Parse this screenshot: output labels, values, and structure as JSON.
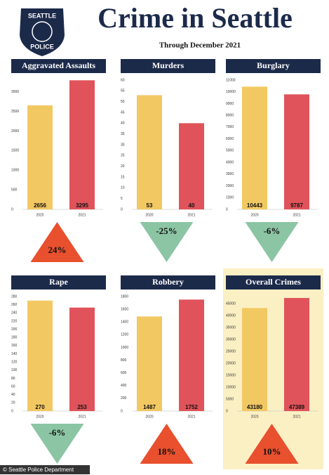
{
  "header": {
    "badge_top": "SEATTLE",
    "badge_bottom": "POLICE",
    "title": "Crime in Seattle",
    "subtitle": "Through December 2021"
  },
  "credit": "© Seattle Police Department",
  "chart_data": [
    {
      "type": "bar",
      "title": "Aggravated Assaults",
      "categories": [
        "2020",
        "2021"
      ],
      "values": [
        2656,
        3295
      ],
      "colors": [
        "#f2c862",
        "#e0535a"
      ],
      "ylim": [
        0,
        3300
      ],
      "yticks": [
        0,
        500,
        1000,
        1500,
        2000,
        2500,
        3000
      ],
      "annotation": "24%",
      "annotation_direction": "up",
      "annotation_color": "#e8502e",
      "highlight": false
    },
    {
      "type": "bar",
      "title": "Murders",
      "categories": [
        "2020",
        "2021"
      ],
      "values": [
        53,
        40
      ],
      "colors": [
        "#f2c862",
        "#e0535a"
      ],
      "ylim": [
        0,
        60
      ],
      "yticks": [
        0,
        5,
        10,
        15,
        20,
        25,
        30,
        35,
        40,
        45,
        50,
        55,
        60
      ],
      "annotation": "-25%",
      "annotation_direction": "down",
      "annotation_color": "#8cc5a4",
      "highlight": false
    },
    {
      "type": "bar",
      "title": "Burglary",
      "categories": [
        "2020",
        "2021"
      ],
      "values": [
        10443,
        9787
      ],
      "colors": [
        "#f2c862",
        "#e0535a"
      ],
      "ylim": [
        0,
        11000
      ],
      "yticks": [
        0,
        1000,
        2000,
        3000,
        4000,
        5000,
        6000,
        7000,
        8000,
        9000,
        10000,
        11000
      ],
      "annotation": "-6%",
      "annotation_direction": "down",
      "annotation_color": "#8cc5a4",
      "highlight": false
    },
    {
      "type": "bar",
      "title": "Rape",
      "categories": [
        "2020",
        "2021"
      ],
      "values": [
        270,
        253
      ],
      "colors": [
        "#f2c862",
        "#e0535a"
      ],
      "ylim": [
        0,
        280
      ],
      "yticks": [
        0,
        20,
        40,
        60,
        80,
        100,
        120,
        140,
        160,
        180,
        200,
        220,
        240,
        260,
        280
      ],
      "annotation": "-6%",
      "annotation_direction": "down",
      "annotation_color": "#8cc5a4",
      "highlight": false
    },
    {
      "type": "bar",
      "title": "Robbery",
      "categories": [
        "2020",
        "2021"
      ],
      "values": [
        1487,
        1752
      ],
      "colors": [
        "#f2c862",
        "#e0535a"
      ],
      "ylim": [
        0,
        1800
      ],
      "yticks": [
        0,
        200,
        400,
        600,
        800,
        1000,
        1200,
        1400,
        1600,
        1800
      ],
      "annotation": "18%",
      "annotation_direction": "up",
      "annotation_color": "#e8502e",
      "highlight": false
    },
    {
      "type": "bar",
      "title": "Overall Crimes",
      "categories": [
        "2020",
        "2021"
      ],
      "values": [
        43180,
        47389
      ],
      "colors": [
        "#f2c862",
        "#e0535a"
      ],
      "ylim": [
        0,
        48000
      ],
      "yticks": [
        0,
        5000,
        10000,
        15000,
        20000,
        25000,
        30000,
        35000,
        40000,
        45000
      ],
      "annotation": "10%",
      "annotation_direction": "up",
      "annotation_color": "#e8502e",
      "highlight": true
    }
  ]
}
